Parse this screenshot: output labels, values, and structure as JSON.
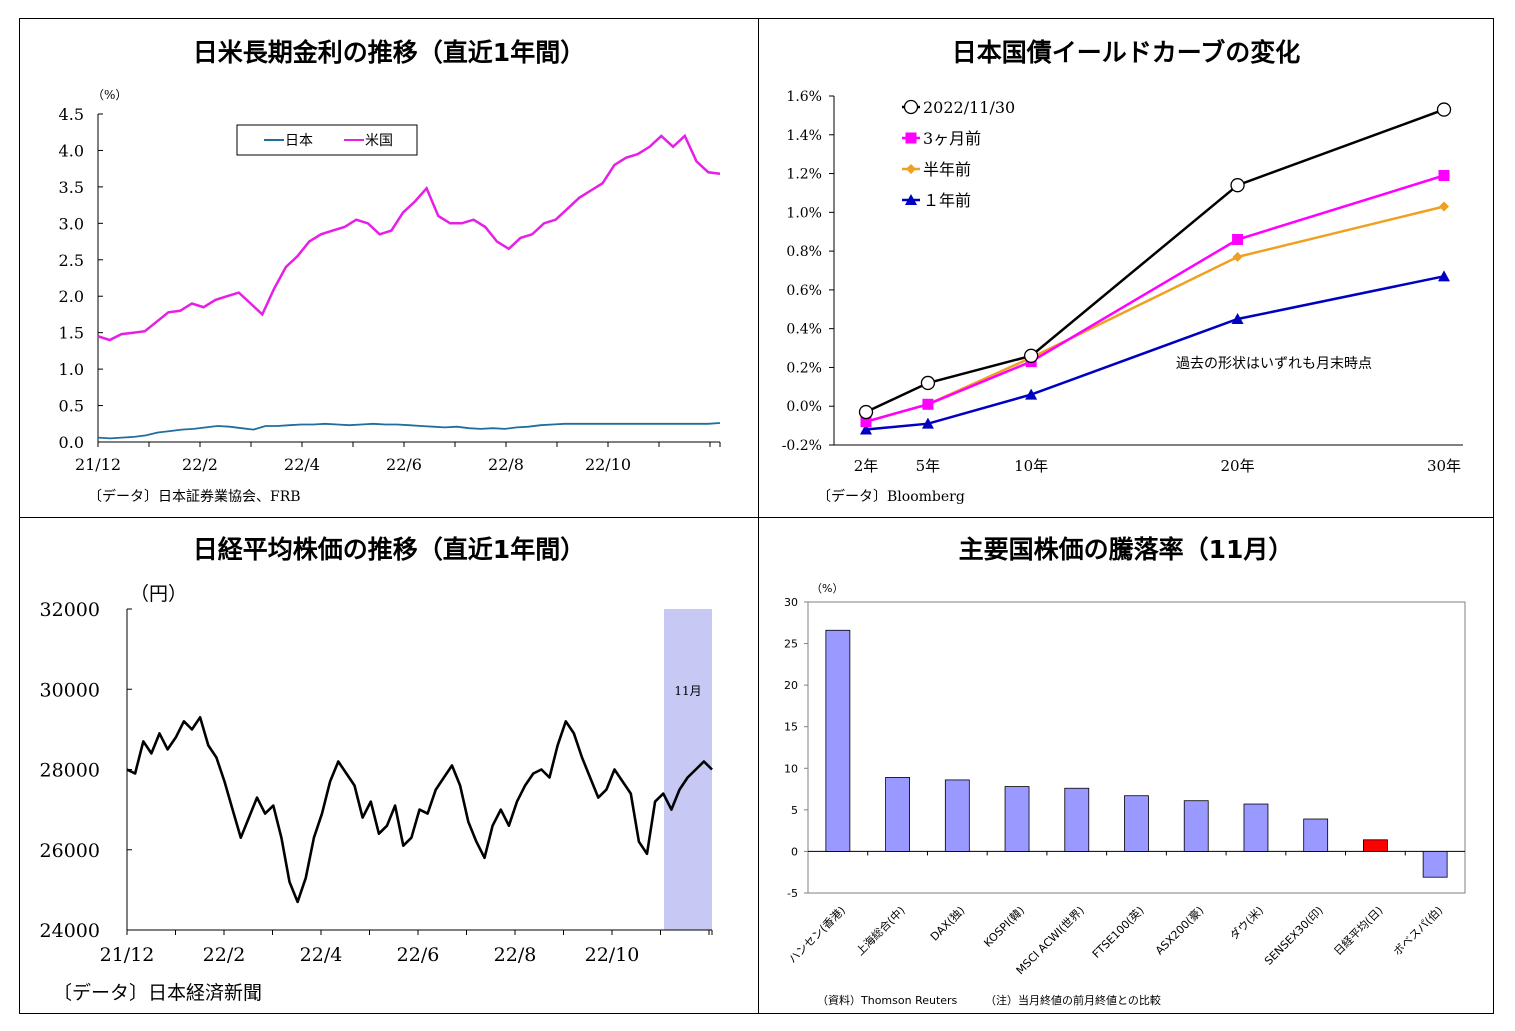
{
  "chart_data": [
    {
      "id": "rates",
      "type": "line",
      "title": "日米長期金利の推移（直近1年間）",
      "unit": "（%）",
      "ylim": [
        0,
        4.5
      ],
      "yticks": [
        "0.0",
        "0.5",
        "1.0",
        "1.5",
        "2.0",
        "2.5",
        "3.0",
        "3.5",
        "4.0",
        "4.5"
      ],
      "xticks": [
        "21/12",
        "22/2",
        "22/4",
        "22/6",
        "22/8",
        "22/10"
      ],
      "source": "〔データ〕日本証券業協会、FRB",
      "series": [
        {
          "name": "日本",
          "color": "#1f6e9c",
          "values": [
            0.06,
            0.05,
            0.06,
            0.07,
            0.09,
            0.13,
            0.15,
            0.17,
            0.18,
            0.2,
            0.22,
            0.21,
            0.19,
            0.17,
            0.22,
            0.22,
            0.23,
            0.24,
            0.24,
            0.25,
            0.24,
            0.23,
            0.24,
            0.25,
            0.24,
            0.24,
            0.23,
            0.22,
            0.21,
            0.2,
            0.21,
            0.19,
            0.18,
            0.19,
            0.18,
            0.2,
            0.21,
            0.23,
            0.24,
            0.25,
            0.25,
            0.25,
            0.25,
            0.25,
            0.25,
            0.25,
            0.25,
            0.25,
            0.25,
            0.25,
            0.25,
            0.25,
            0.26
          ]
        },
        {
          "name": "米国",
          "color": "#e61ee6",
          "values": [
            1.45,
            1.4,
            1.48,
            1.5,
            1.52,
            1.65,
            1.78,
            1.8,
            1.9,
            1.85,
            1.95,
            2.0,
            2.05,
            1.9,
            1.75,
            2.1,
            2.4,
            2.55,
            2.75,
            2.85,
            2.9,
            2.95,
            3.05,
            3.0,
            2.85,
            2.9,
            3.15,
            3.3,
            3.48,
            3.1,
            3.0,
            3.0,
            3.05,
            2.95,
            2.75,
            2.65,
            2.8,
            2.85,
            3.0,
            3.05,
            3.2,
            3.35,
            3.45,
            3.55,
            3.8,
            3.9,
            3.95,
            4.05,
            4.2,
            4.05,
            4.2,
            3.85,
            3.7,
            3.68
          ]
        }
      ]
    },
    {
      "id": "yield",
      "type": "line",
      "title": "日本国債イールドカーブの変化",
      "ylim": [
        -0.2,
        1.6
      ],
      "yticks": [
        "-0.2%",
        "0.0%",
        "0.2%",
        "0.4%",
        "0.6%",
        "0.8%",
        "1.0%",
        "1.2%",
        "1.4%",
        "1.6%"
      ],
      "categories": [
        "2年",
        "5年",
        "10年",
        "20年",
        "30年"
      ],
      "x": [
        2,
        5,
        10,
        20,
        30
      ],
      "annotation": "過去の形状はいずれも月末時点",
      "source": "〔データ〕Bloomberg",
      "series": [
        {
          "name": "2022/11/30",
          "color": "#000000",
          "marker": "circle",
          "values": [
            -0.03,
            0.12,
            0.26,
            1.14,
            1.53
          ]
        },
        {
          "name": "3ヶ月前",
          "color": "#ff00ff",
          "marker": "square",
          "values": [
            -0.08,
            0.01,
            0.23,
            0.86,
            1.19
          ]
        },
        {
          "name": "半年前",
          "color": "#f0a020",
          "marker": "diamond",
          "values": [
            -0.08,
            0.01,
            0.25,
            0.77,
            1.03
          ]
        },
        {
          "name": "１年前",
          "color": "#0000c0",
          "marker": "triangle",
          "values": [
            -0.12,
            -0.09,
            0.06,
            0.45,
            0.67
          ]
        }
      ]
    },
    {
      "id": "nikkei",
      "type": "line",
      "title": "日経平均株価の推移（直近1年間）",
      "unit": "（円）",
      "ylim": [
        24000,
        32000
      ],
      "yticks": [
        "24000",
        "26000",
        "28000",
        "30000",
        "32000"
      ],
      "xticks": [
        "21/12",
        "22/2",
        "22/4",
        "22/6",
        "22/8",
        "22/10"
      ],
      "highlight_label": "11月",
      "highlight_color": "#c8c8f5",
      "source": "〔データ〕日本経済新聞",
      "series": [
        {
          "name": "日経平均",
          "color": "#000000",
          "values": [
            28000,
            27900,
            28700,
            28400,
            28900,
            28500,
            28800,
            29200,
            29000,
            29300,
            28600,
            28300,
            27700,
            27000,
            26300,
            26800,
            27300,
            26900,
            27100,
            26300,
            25200,
            24700,
            25300,
            26300,
            26900,
            27700,
            28200,
            27900,
            27600,
            26800,
            27200,
            26400,
            26600,
            27100,
            26100,
            26300,
            27000,
            26900,
            27500,
            27800,
            28100,
            27600,
            26700,
            26200,
            25800,
            26600,
            27000,
            26600,
            27200,
            27600,
            27900,
            28000,
            27800,
            28600,
            29200,
            28900,
            28300,
            27800,
            27300,
            27500,
            28000,
            27700,
            27400,
            26200,
            25900,
            27200,
            27400,
            27000,
            27500,
            27800,
            28000,
            28200,
            28000
          ]
        }
      ]
    },
    {
      "id": "stocks",
      "type": "bar",
      "title": "主要国株価の騰落率（11月）",
      "unit": "（%）",
      "ylim": [
        -5,
        30
      ],
      "yticks": [
        "-5",
        "0",
        "5",
        "10",
        "15",
        "20",
        "25",
        "30"
      ],
      "categories": [
        "ハンセン(香港)",
        "上海総合(中)",
        "DAX(独)",
        "KOSPI(韓)",
        "MSCI ACWI(世界)",
        "FTSE100(英)",
        "ASX200(豪)",
        "ダウ(米)",
        "SENSEX30(印)",
        "日経平均(日)",
        "ボベスパ(伯)"
      ],
      "values": [
        26.6,
        8.9,
        8.6,
        7.8,
        7.6,
        6.7,
        6.1,
        5.7,
        3.9,
        1.4,
        -3.1
      ],
      "bar_color": "#9999ff",
      "highlight_color": "#ff0000",
      "highlight_index": 9,
      "source": "（資料）Thomson Reuters",
      "note": "（注）当月終値の前月終値との比較"
    }
  ]
}
